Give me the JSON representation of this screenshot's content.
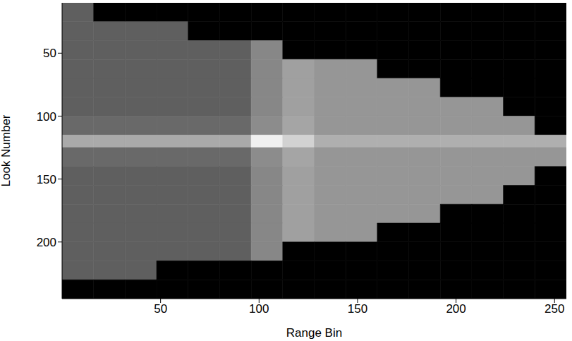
{
  "chart_data": {
    "type": "heatmap",
    "xlabel": "Range Bin",
    "ylabel": "Look Number",
    "xlim": [
      0,
      256
    ],
    "ylim": [
      10,
      245
    ],
    "xticks": [
      50,
      100,
      150,
      200,
      250
    ],
    "yticks": [
      50,
      100,
      150,
      200
    ],
    "zlim": [
      0,
      255
    ],
    "color": "#ffffff",
    "x_edges": [
      0,
      16,
      32,
      48,
      64,
      80,
      96,
      112,
      128,
      144,
      160,
      176,
      192,
      208,
      224,
      240,
      256
    ],
    "y_edges": [
      10,
      25,
      40,
      55,
      70,
      85,
      100,
      115,
      125,
      140,
      155,
      170,
      185,
      200,
      215,
      230,
      245
    ],
    "cells": [
      [
        95,
        0,
        0,
        0,
        0,
        0,
        0,
        0,
        0,
        0,
        0,
        0,
        0,
        0,
        0,
        0
      ],
      [
        95,
        95,
        95,
        95,
        0,
        0,
        0,
        0,
        0,
        0,
        0,
        0,
        0,
        0,
        0,
        0
      ],
      [
        95,
        95,
        95,
        95,
        95,
        95,
        135,
        0,
        0,
        0,
        0,
        0,
        0,
        0,
        0,
        0
      ],
      [
        95,
        95,
        95,
        95,
        95,
        95,
        135,
        160,
        150,
        150,
        0,
        0,
        0,
        0,
        0,
        0
      ],
      [
        95,
        95,
        95,
        95,
        95,
        95,
        135,
        160,
        150,
        150,
        150,
        150,
        0,
        0,
        0,
        0
      ],
      [
        95,
        95,
        95,
        95,
        95,
        95,
        135,
        160,
        150,
        150,
        150,
        150,
        150,
        150,
        0,
        0
      ],
      [
        105,
        105,
        105,
        105,
        105,
        105,
        140,
        165,
        150,
        150,
        150,
        150,
        150,
        150,
        150,
        0
      ],
      [
        170,
        170,
        170,
        170,
        170,
        170,
        240,
        210,
        175,
        175,
        175,
        175,
        175,
        175,
        175,
        175
      ],
      [
        105,
        105,
        105,
        105,
        105,
        105,
        140,
        165,
        150,
        150,
        150,
        150,
        150,
        150,
        150,
        150
      ],
      [
        95,
        95,
        95,
        95,
        95,
        95,
        135,
        160,
        150,
        150,
        150,
        150,
        150,
        150,
        150,
        0
      ],
      [
        95,
        95,
        95,
        95,
        95,
        95,
        135,
        160,
        150,
        150,
        150,
        150,
        150,
        150,
        0,
        0
      ],
      [
        95,
        95,
        95,
        95,
        95,
        95,
        135,
        160,
        150,
        150,
        150,
        150,
        0,
        0,
        0,
        0
      ],
      [
        95,
        95,
        95,
        95,
        95,
        95,
        135,
        160,
        150,
        150,
        0,
        0,
        0,
        0,
        0,
        0
      ],
      [
        95,
        95,
        95,
        95,
        95,
        95,
        135,
        0,
        0,
        0,
        0,
        0,
        0,
        0,
        0,
        0
      ],
      [
        95,
        95,
        95,
        0,
        0,
        0,
        0,
        0,
        0,
        0,
        0,
        0,
        0,
        0,
        0,
        0
      ],
      [
        0,
        0,
        0,
        0,
        0,
        0,
        0,
        0,
        0,
        0,
        0,
        0,
        0,
        0,
        0,
        0
      ]
    ]
  }
}
